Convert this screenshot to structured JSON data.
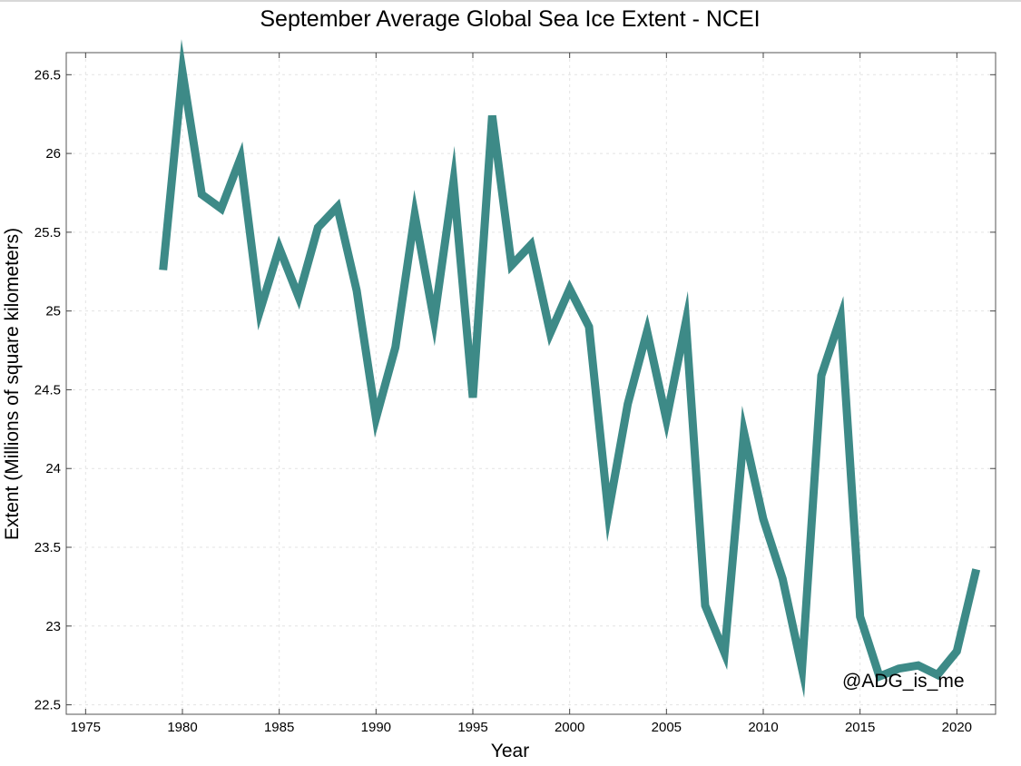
{
  "chart_data": {
    "type": "line",
    "title": "September Average Global Sea Ice Extent - NCEI",
    "xlabel": "Year",
    "ylabel": "Extent (Millions of square kilometers)",
    "xlim": [
      1974,
      2022
    ],
    "ylim": [
      22.44,
      26.64
    ],
    "x_ticks": [
      1975,
      1980,
      1985,
      1990,
      1995,
      2000,
      2005,
      2010,
      2015,
      2020
    ],
    "y_ticks": [
      22.5,
      23,
      23.5,
      24,
      24.5,
      25,
      25.5,
      26,
      26.5
    ],
    "y_tick_labels": [
      "22.5",
      "23",
      "23.5",
      "24",
      "24.5",
      "25",
      "25.5",
      "26",
      "26.5"
    ],
    "grid": true,
    "series": [
      {
        "color": "#3d8a87",
        "x": [
          1979,
          1980,
          1981,
          1982,
          1983,
          1984,
          1985,
          1986,
          1987,
          1988,
          1989,
          1990,
          1991,
          1992,
          1993,
          1994,
          1995,
          1996,
          1997,
          1998,
          1999,
          2000,
          2001,
          2002,
          2003,
          2004,
          2005,
          2006,
          2007,
          2008,
          2009,
          2010,
          2011,
          2012,
          2013,
          2014,
          2015,
          2016,
          2017,
          2018,
          2019,
          2020,
          2021
        ],
        "values": [
          25.26,
          26.52,
          25.74,
          25.65,
          25.97,
          25.0,
          25.4,
          25.09,
          25.53,
          25.66,
          25.13,
          24.32,
          24.77,
          25.61,
          24.94,
          25.82,
          24.45,
          26.24,
          25.29,
          25.42,
          24.86,
          25.14,
          24.9,
          23.72,
          24.41,
          24.87,
          24.31,
          24.93,
          23.13,
          22.83,
          24.23,
          23.68,
          23.3,
          22.73,
          24.59,
          24.96,
          23.06,
          22.68,
          22.73,
          22.75,
          22.69,
          22.84,
          23.36
        ]
      }
    ]
  },
  "annotation": "@ADG_is_me"
}
